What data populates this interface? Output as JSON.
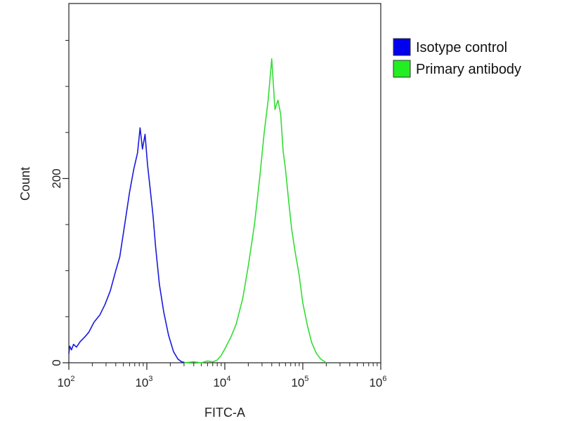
{
  "chart_data": {
    "type": "line",
    "title": "",
    "xlabel": "FITC-A",
    "ylabel": "Count",
    "x_scale": "log",
    "xlim": [
      100,
      1000000
    ],
    "ylim": [
      0,
      390
    ],
    "x_ticks": [
      {
        "value": 100,
        "base": "10",
        "exp": "2"
      },
      {
        "value": 1000,
        "base": "10",
        "exp": "3"
      },
      {
        "value": 10000,
        "base": "10",
        "exp": "4"
      },
      {
        "value": 100000,
        "base": "10",
        "exp": "5"
      },
      {
        "value": 1000000,
        "base": "10",
        "exp": "6"
      }
    ],
    "y_ticks": [
      {
        "value": 0,
        "label": "0"
      },
      {
        "value": 200,
        "label": "200"
      }
    ],
    "y_minor_ticks": [
      50,
      100,
      150,
      250,
      300,
      350
    ],
    "legend_position": "right",
    "series": [
      {
        "name": "Isotype control",
        "color": "#1a1adb",
        "legend_color": "#0000ee",
        "x": [
          100,
          103,
          108,
          115,
          125,
          140,
          160,
          180,
          210,
          250,
          290,
          340,
          400,
          450,
          520,
          600,
          680,
          760,
          820,
          880,
          950,
          1020,
          1100,
          1200,
          1300,
          1450,
          1650,
          1900,
          2200,
          2500,
          2800,
          3200
        ],
        "y": [
          10,
          18,
          14,
          20,
          17,
          23,
          28,
          33,
          44,
          52,
          63,
          78,
          100,
          115,
          150,
          185,
          210,
          228,
          255,
          232,
          248,
          215,
          190,
          160,
          125,
          85,
          55,
          30,
          12,
          4,
          1,
          0
        ]
      },
      {
        "name": "Primary antibody",
        "color": "#33dd33",
        "legend_color": "#22ee22",
        "x": [
          3000,
          4000,
          5000,
          6000,
          7000,
          8000,
          9000,
          10000,
          12000,
          14000,
          17000,
          20000,
          24000,
          28000,
          32000,
          36000,
          40000,
          44000,
          48000,
          52000,
          56000,
          60000,
          66000,
          72000,
          80000,
          90000,
          100000,
          115000,
          130000,
          150000,
          170000,
          200000
        ],
        "y": [
          0,
          1,
          0,
          2,
          1,
          3,
          8,
          15,
          28,
          42,
          70,
          105,
          150,
          200,
          250,
          285,
          330,
          275,
          285,
          270,
          230,
          210,
          175,
          145,
          120,
          95,
          65,
          40,
          22,
          10,
          4,
          0
        ]
      }
    ]
  }
}
